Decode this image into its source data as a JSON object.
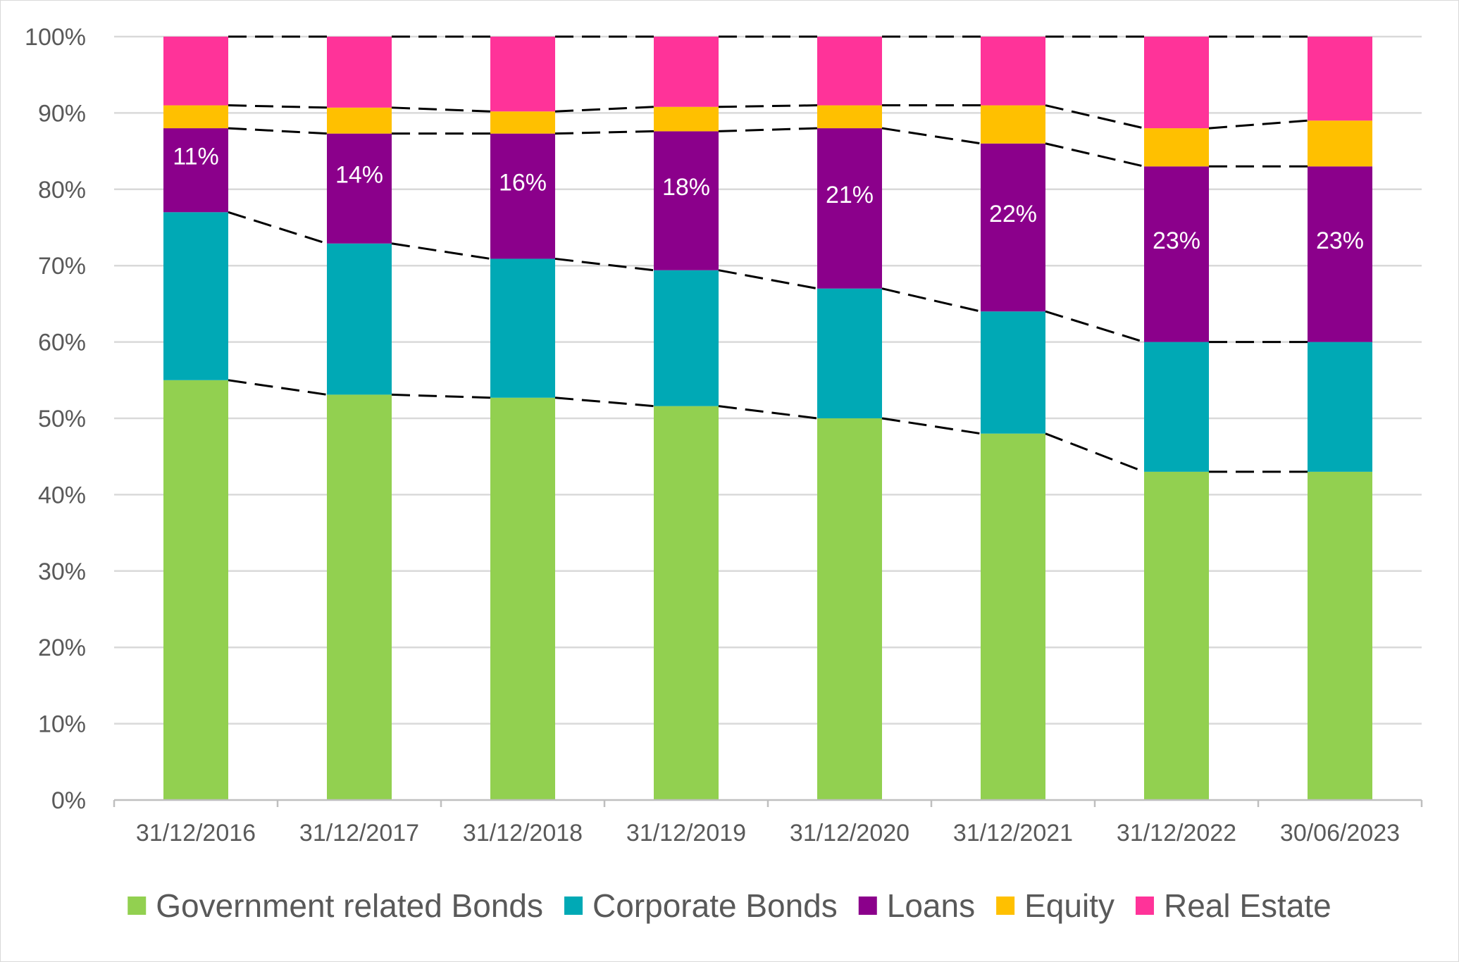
{
  "chart_data": {
    "type": "bar",
    "stacked": true,
    "categories": [
      "31/12/2016",
      "31/12/2017",
      "31/12/2018",
      "31/12/2019",
      "31/12/2020",
      "31/12/2021",
      "31/12/2022",
      "30/06/2023"
    ],
    "y_ticks": [
      "0%",
      "10%",
      "20%",
      "30%",
      "40%",
      "50%",
      "60%",
      "70%",
      "80%",
      "90%",
      "100%"
    ],
    "ylim": [
      0,
      100
    ],
    "grid": true,
    "legend_position": "bottom",
    "series": [
      {
        "name": "Government related Bonds",
        "color": "#92d050",
        "values": [
          55,
          53.1,
          52.7,
          51.6,
          50,
          48,
          43,
          43
        ]
      },
      {
        "name": "Corporate Bonds",
        "color": "#00a9b5",
        "values": [
          22,
          19.8,
          18.2,
          17.8,
          17,
          16,
          17,
          17
        ]
      },
      {
        "name": "Loans",
        "color": "#8b008b",
        "values": [
          11,
          14.4,
          16.4,
          18.2,
          21,
          22,
          23,
          23
        ]
      },
      {
        "name": "Equity",
        "color": "#ffc000",
        "values": [
          3,
          3.4,
          2.9,
          3.2,
          3,
          5,
          5,
          6
        ]
      },
      {
        "name": "Real Estate",
        "color": "#ff3399",
        "values": [
          9,
          9.3,
          9.8,
          9.2,
          9,
          9,
          12,
          11
        ]
      }
    ],
    "data_labels": {
      "series": "Loans",
      "labels": [
        "11%",
        "14%",
        "16%",
        "18%",
        "21%",
        "22%",
        "23%",
        "23%"
      ]
    },
    "connector_lines": "dashed lines connecting cumulative series boundaries between bars"
  }
}
